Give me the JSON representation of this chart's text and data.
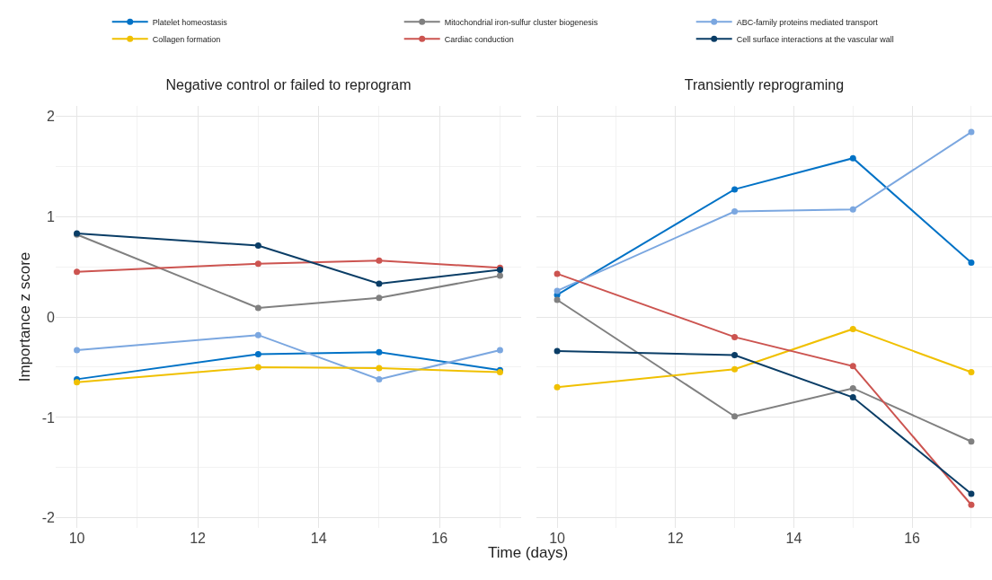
{
  "chart_data": [
    {
      "type": "line",
      "title": "Negative control or failed to reprogram",
      "xlabel": "Time (days)",
      "ylabel": "Importance z score",
      "x": [
        10,
        13,
        15,
        17
      ],
      "xlim": [
        9.65,
        17.35
      ],
      "xticks": [
        10,
        12,
        14,
        16
      ],
      "ylim": [
        -2.1,
        2.1
      ],
      "yticks": [
        -2,
        -1,
        0,
        1,
        2
      ],
      "grid": true,
      "legend": "top",
      "marker": "circle",
      "line_style": "solid",
      "series": [
        {
          "name": "Platelet homeostasis",
          "color": "#0072c6",
          "values": [
            -0.62,
            -0.37,
            -0.35,
            -0.53
          ]
        },
        {
          "name": "Mitochondrial iron-sulfur cluster biogenesis",
          "color": "#808080",
          "values": [
            0.82,
            0.09,
            0.19,
            0.41
          ]
        },
        {
          "name": "ABC-family proteins mediated transport",
          "color": "#7ba7e0",
          "values": [
            -0.33,
            -0.18,
            -0.62,
            -0.33
          ]
        },
        {
          "name": "Collagen formation",
          "color": "#f0c000",
          "values": [
            -0.65,
            -0.5,
            -0.51,
            -0.55
          ]
        },
        {
          "name": "Cardiac conduction",
          "color": "#cc5450",
          "values": [
            0.45,
            0.53,
            0.56,
            0.49
          ]
        },
        {
          "name": "Cell surface interactions at the vascular wall",
          "color": "#0a3d66",
          "values": [
            0.83,
            0.71,
            0.33,
            0.47
          ]
        }
      ]
    },
    {
      "type": "line",
      "title": "Transiently reprograming",
      "x": [
        10,
        13,
        15,
        17
      ],
      "xlim": [
        9.65,
        17.35
      ],
      "xticks": [
        10,
        12,
        14,
        16
      ],
      "ylim": [
        -2.1,
        2.1
      ],
      "yticks": [
        -2,
        -1,
        0,
        1,
        2
      ],
      "tick_labels": "x",
      "grid": true,
      "marker": "circle",
      "line_style": "solid",
      "series": [
        {
          "color": "#0072c6",
          "values": [
            0.22,
            1.27,
            1.58,
            0.54
          ]
        },
        {
          "color": "#808080",
          "values": [
            0.17,
            -0.99,
            -0.71,
            -1.24
          ]
        },
        {
          "color": "#7ba7e0",
          "values": [
            0.26,
            1.05,
            1.07,
            1.84
          ]
        },
        {
          "color": "#f0c000",
          "values": [
            -0.7,
            -0.52,
            -0.12,
            -0.55
          ]
        },
        {
          "color": "#cc5450",
          "values": [
            0.43,
            -0.2,
            -0.49,
            -1.87
          ]
        },
        {
          "color": "#0a3d66",
          "values": [
            -0.34,
            -0.38,
            -0.8,
            -1.76
          ]
        }
      ]
    }
  ]
}
